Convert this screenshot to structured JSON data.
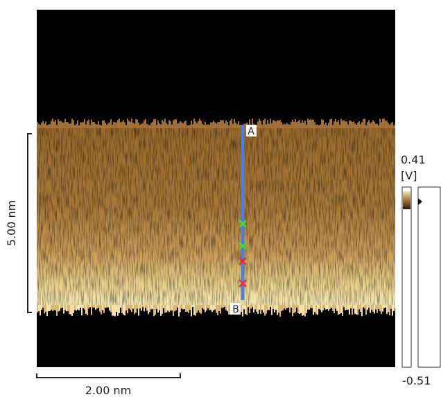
{
  "image": {
    "scale_y_label": "5.00 nm",
    "scale_x_label": "2.00 nm",
    "line_start": "A",
    "line_end": "B"
  },
  "color_bar": {
    "max_label": "0.41",
    "unit": "[V]",
    "min_label": "-0.51"
  }
}
